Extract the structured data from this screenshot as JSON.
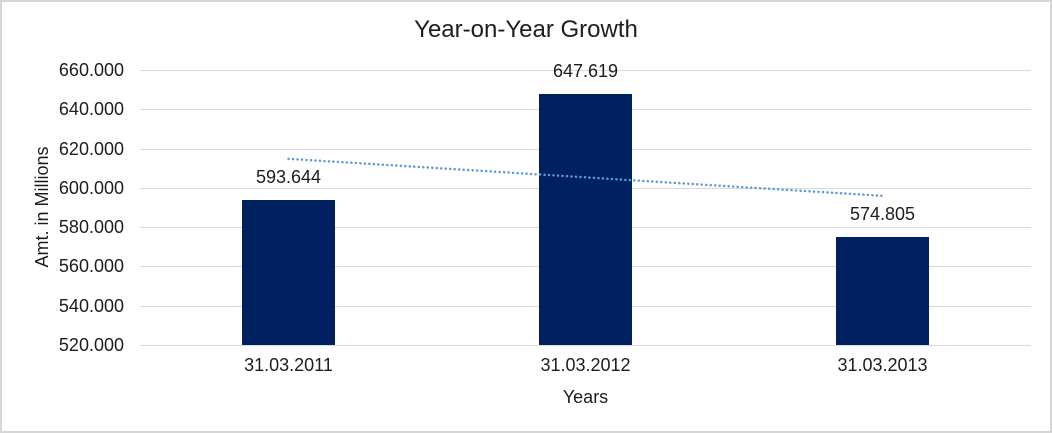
{
  "chart_data": {
    "type": "bar",
    "title": "Year-on-Year Growth",
    "xlabel": "Years",
    "ylabel": "Amt. in Millions",
    "categories": [
      "31.03.2011",
      "31.03.2012",
      "31.03.2013"
    ],
    "values": [
      593644,
      647619,
      574805
    ],
    "value_labels": [
      "593.644",
      "647.619",
      "574.805"
    ],
    "ylim": [
      520000,
      660000
    ],
    "y_ticks": [
      {
        "value": 660000,
        "label": "660.000"
      },
      {
        "value": 640000,
        "label": "640.000"
      },
      {
        "value": 620000,
        "label": "620.000"
      },
      {
        "value": 600000,
        "label": "600.000"
      },
      {
        "value": 580000,
        "label": "580.000"
      },
      {
        "value": 560000,
        "label": "560.000"
      },
      {
        "value": 540000,
        "label": "540.000"
      },
      {
        "value": 520000,
        "label": "520.000"
      }
    ],
    "grid": true,
    "legend": "none",
    "bar_color": "#002060",
    "trendline": {
      "type": "linear",
      "style": "dotted",
      "color": "#5B9BD5"
    },
    "colors": {
      "gridline": "#D9D9D9",
      "text": "#1d1d1d",
      "background": "#FFFFFF",
      "border": "#D6D6D6"
    }
  }
}
